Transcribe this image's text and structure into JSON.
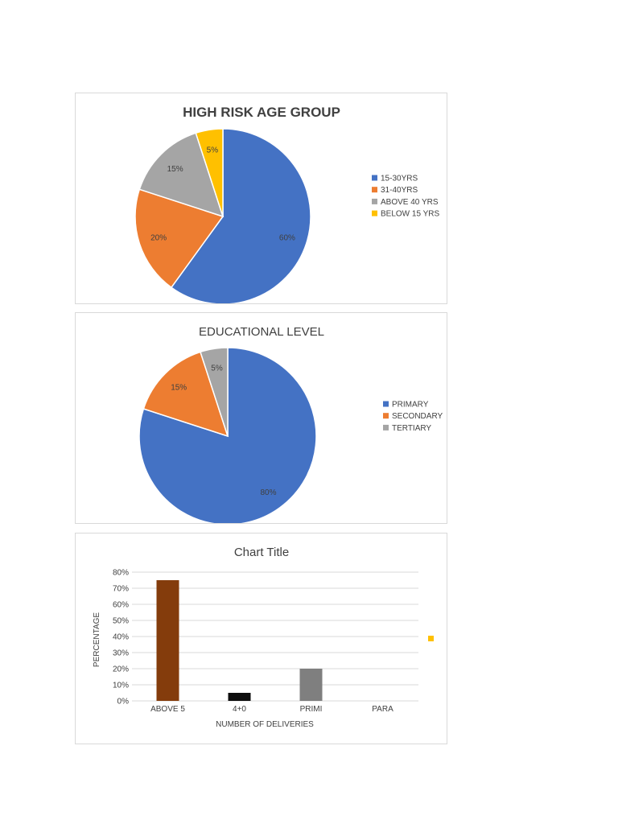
{
  "chart_data": [
    {
      "type": "pie",
      "title": "HIGH RISK AGE GROUP",
      "legend_position": "right",
      "categories": [
        "15-30YRS",
        "31-40YRS",
        "ABOVE 40 YRS",
        "BELOW 15 YRS"
      ],
      "values": [
        60,
        20,
        15,
        5
      ],
      "labels": [
        "60%",
        "20%",
        "15%",
        "5%"
      ],
      "colors": [
        "#4472c4",
        "#ed7d31",
        "#a5a5a5",
        "#ffc000"
      ]
    },
    {
      "type": "pie",
      "title": "EDUCATIONAL LEVEL",
      "legend_position": "right",
      "categories": [
        "PRIMARY",
        "SECONDARY",
        "TERTIARY"
      ],
      "values": [
        80,
        15,
        5
      ],
      "labels": [
        "80%",
        "15%",
        "5%"
      ],
      "colors": [
        "#4472c4",
        "#ed7d31",
        "#a5a5a5"
      ]
    },
    {
      "type": "bar",
      "title": "Chart Title",
      "xlabel": "NUMBER OF DELIVERIES",
      "ylabel": "PERCENTAGE",
      "categories": [
        "ABOVE 5",
        "4+0",
        "PRIMI",
        "PARA"
      ],
      "values": [
        75,
        5,
        20,
        0
      ],
      "bar_colors": [
        "#843c0c",
        "#0d0d0d",
        "#7f7f7f",
        "#ffc000"
      ],
      "ylim": [
        0,
        80
      ],
      "yticks": [
        "0%",
        "10%",
        "20%",
        "30%",
        "40%",
        "50%",
        "60%",
        "70%",
        "80%"
      ],
      "grid": true,
      "legend_position": "right",
      "legend_marker_color": "#ffc000"
    }
  ]
}
